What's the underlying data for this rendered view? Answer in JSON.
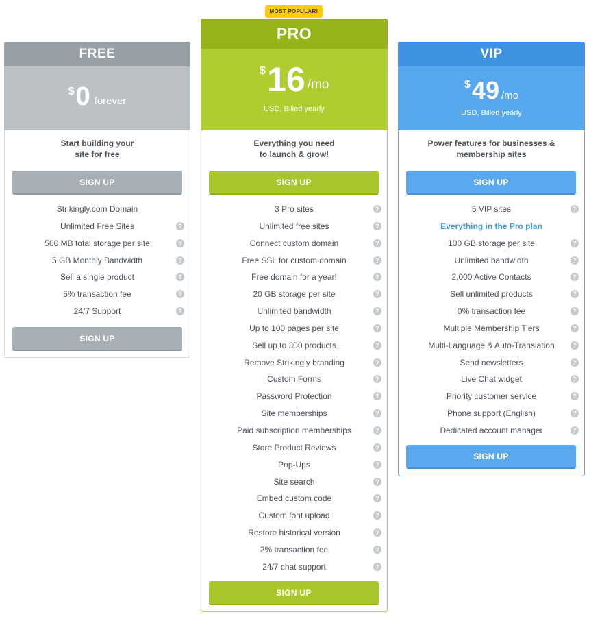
{
  "badge": "MOST POPULAR!",
  "icons": {
    "help": "question-mark-circle-icon"
  },
  "colors": {
    "free": "#989fa5",
    "pro": "#96b31a",
    "vip": "#3e92e2",
    "badge": "#ffcb05"
  },
  "plans": {
    "free": {
      "name": "FREE",
      "currency": "$",
      "amount": "0",
      "period": "forever",
      "billing": "",
      "tagline_1": "Start building your",
      "tagline_2": "site for free",
      "cta": "SIGN UP",
      "features": [
        {
          "text": "Strikingly.com Domain",
          "help": false
        },
        {
          "text": "Unlimited Free Sites",
          "help": true
        },
        {
          "text": "500 MB total storage per site",
          "help": true
        },
        {
          "text": "5 GB Monthly Bandwidth",
          "help": true
        },
        {
          "text": "Sell a single product",
          "help": true
        },
        {
          "text": "5% transaction fee",
          "help": true
        },
        {
          "text": "24/7 Support",
          "help": true
        }
      ]
    },
    "pro": {
      "name": "PRO",
      "currency": "$",
      "amount": "16",
      "period": "/mo",
      "billing": "USD, Billed yearly",
      "tagline_1": "Everything you need",
      "tagline_2": "to launch & grow!",
      "cta": "SIGN UP",
      "features": [
        {
          "text": "3 Pro sites",
          "help": true
        },
        {
          "text": "Unlimited free sites",
          "help": true
        },
        {
          "text": "Connect custom domain",
          "help": true
        },
        {
          "text": "Free SSL for custom domain",
          "help": true
        },
        {
          "text": "Free domain for a year!",
          "help": true
        },
        {
          "text": "20 GB storage per site",
          "help": true
        },
        {
          "text": "Unlimited bandwidth",
          "help": true
        },
        {
          "text": "Up to 100 pages per site",
          "help": true
        },
        {
          "text": "Sell up to 300 products",
          "help": true
        },
        {
          "text": "Remove Strikingly branding",
          "help": true
        },
        {
          "text": "Custom Forms",
          "help": true
        },
        {
          "text": "Password Protection",
          "help": true
        },
        {
          "text": "Site memberships",
          "help": true
        },
        {
          "text": "Paid subscription memberships",
          "help": true
        },
        {
          "text": "Store Product Reviews",
          "help": true
        },
        {
          "text": "Pop-Ups",
          "help": true
        },
        {
          "text": "Site search",
          "help": true
        },
        {
          "text": "Embed custom code",
          "help": true
        },
        {
          "text": "Custom font upload",
          "help": true
        },
        {
          "text": "Restore historical version",
          "help": true
        },
        {
          "text": "2% transaction fee",
          "help": true
        },
        {
          "text": "24/7 chat support",
          "help": true
        }
      ]
    },
    "vip": {
      "name": "VIP",
      "currency": "$",
      "amount": "49",
      "period": "/mo",
      "billing": "USD, Billed yearly",
      "tagline_1": "Power features for businesses &",
      "tagline_2": "membership sites",
      "cta": "SIGN UP",
      "features": [
        {
          "text": "5 VIP sites",
          "help": true
        },
        {
          "text": "Everything in the Pro plan",
          "help": false,
          "highlight": true
        },
        {
          "text": "100 GB storage per site",
          "help": true
        },
        {
          "text": "Unlimited bandwidth",
          "help": true
        },
        {
          "text": "2,000 Active Contacts",
          "help": true
        },
        {
          "text": "Sell unlimited products",
          "help": true
        },
        {
          "text": "0% transaction fee",
          "help": true
        },
        {
          "text": "Multiple Membership Tiers",
          "help": true
        },
        {
          "text": "Multi-Language & Auto-Translation",
          "help": true
        },
        {
          "text": "Send newsletters",
          "help": true
        },
        {
          "text": "Live Chat widget",
          "help": true
        },
        {
          "text": "Priority customer service",
          "help": true
        },
        {
          "text": "Phone support (English)",
          "help": true
        },
        {
          "text": "Dedicated account manager",
          "help": true
        }
      ]
    }
  }
}
